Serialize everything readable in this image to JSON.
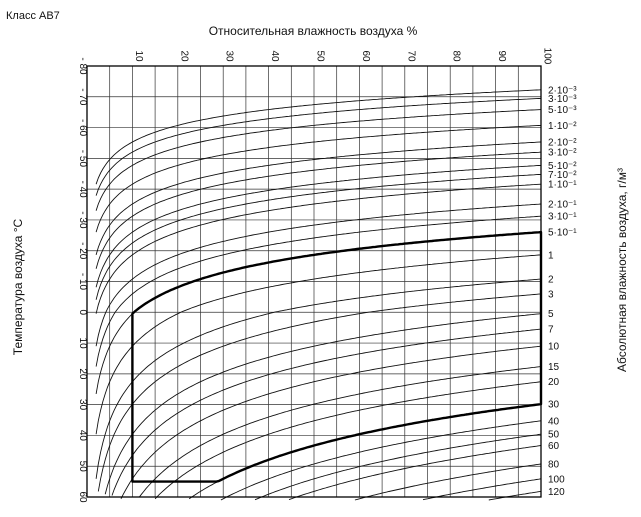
{
  "page": {
    "class_label": "Класс АВ7"
  },
  "chart_data": {
    "type": "line",
    "title": "Класс АВ7",
    "top_axis": {
      "label": "Относительная влажность воздуха %",
      "ticks": [
        "10",
        "20",
        "30",
        "40",
        "50",
        "60",
        "70",
        "80",
        "90",
        "100"
      ],
      "range": [
        0,
        100
      ]
    },
    "left_axis": {
      "label": "Температура воздуха °С",
      "ticks": [
        "- 80",
        "- 70",
        "- 60",
        "- 50",
        "- 40",
        "- 30",
        "- 20",
        "- 10",
        "0",
        "10",
        "20",
        "30",
        "40",
        "50",
        "60"
      ],
      "range": [
        -80,
        60
      ],
      "direction": "top-to-bottom"
    },
    "right_axis": {
      "label": "Абсолютная влажность воздуха, г/м³",
      "ticks": [
        {
          "text": "2·10⁻³",
          "value": 0.002
        },
        {
          "text": "3·10⁻³",
          "value": 0.003
        },
        {
          "text": "5·10⁻³",
          "value": 0.005
        },
        {
          "text": "1·10⁻²",
          "value": 0.01
        },
        {
          "text": "2·10⁻²",
          "value": 0.02
        },
        {
          "text": "3·10⁻²",
          "value": 0.03
        },
        {
          "text": "5·10⁻²",
          "value": 0.05
        },
        {
          "text": "7·10⁻²",
          "value": 0.07
        },
        {
          "text": "1·10⁻¹",
          "value": 0.1
        },
        {
          "text": "2·10⁻¹",
          "value": 0.2
        },
        {
          "text": "3·10⁻¹",
          "value": 0.3
        },
        {
          "text": "5·10⁻¹",
          "value": 0.5
        },
        {
          "text": "1",
          "value": 1
        },
        {
          "text": "2",
          "value": 2
        },
        {
          "text": "3",
          "value": 3
        },
        {
          "text": "5",
          "value": 5
        },
        {
          "text": "7",
          "value": 7
        },
        {
          "text": "10",
          "value": 10
        },
        {
          "text": "15",
          "value": 15
        },
        {
          "text": "20",
          "value": 20
        },
        {
          "text": "30",
          "value": 30
        },
        {
          "text": "40",
          "value": 40
        },
        {
          "text": "50",
          "value": 50
        },
        {
          "text": "60",
          "value": 60
        },
        {
          "text": "80",
          "value": 80
        },
        {
          "text": "100",
          "value": 100
        },
        {
          "text": "120",
          "value": 120
        }
      ]
    },
    "grid": true,
    "curve_family": {
      "description": "absolute humidity isolines",
      "absolute_humidity_values": [
        0.002,
        0.003,
        0.005,
        0.01,
        0.02,
        0.03,
        0.05,
        0.07,
        0.1,
        0.2,
        0.3,
        0.5,
        1,
        2,
        3,
        5,
        7,
        10,
        15,
        20,
        30,
        40,
        50,
        60,
        80,
        100,
        120
      ]
    },
    "climate_envelope": {
      "class": "АВ7",
      "min_relative_humidity": 10,
      "max_relative_humidity": 100,
      "max_temperature": 55,
      "upper_boundary_absolute_humidity": 0.5,
      "lower_boundary_absolute_humidity": 30,
      "upper_corner_temperature_at_10pct": 3
    }
  }
}
